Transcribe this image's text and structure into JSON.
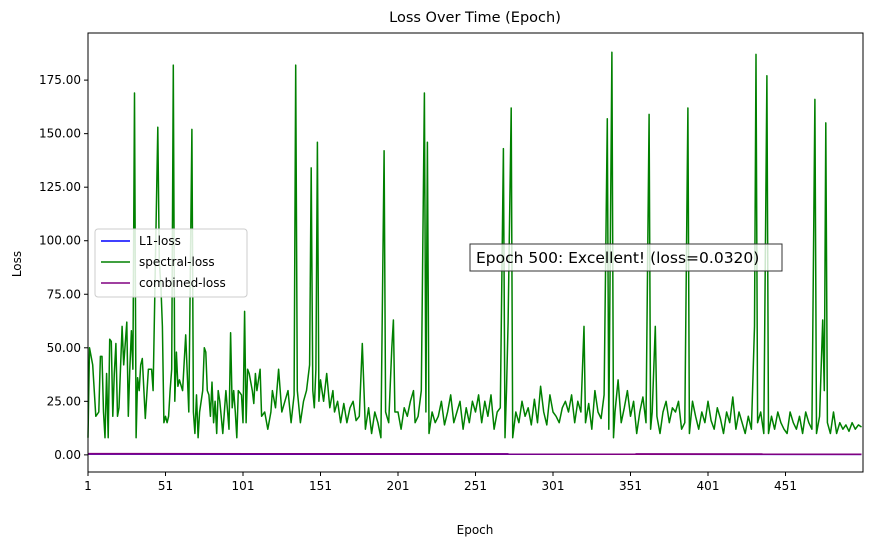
{
  "chart_data": {
    "type": "line",
    "title": "Loss Over Time (Epoch)",
    "xlabel": "Epoch",
    "ylabel": "Loss",
    "xlim": [
      1,
      501
    ],
    "ylim": [
      -8,
      197
    ],
    "xticks": [
      1,
      51,
      101,
      151,
      201,
      251,
      301,
      351,
      401,
      451
    ],
    "yticks": [
      0,
      25,
      50,
      75,
      100,
      125,
      150,
      175
    ],
    "ytick_labels": [
      "0.00",
      "25.00",
      "50.00",
      "75.00",
      "100.00",
      "125.00",
      "150.00",
      "175.00"
    ],
    "legend_position": "center-left",
    "annotation": "Epoch 500: Excellent! (loss=0.0320)",
    "series": [
      {
        "name": "L1-loss",
        "color": "#0000ff",
        "points": [
          [
            1,
            0.4
          ],
          [
            500,
            0.3
          ]
        ]
      },
      {
        "name": "spectral-loss",
        "color": "#008000",
        "points": [
          [
            1,
            8
          ],
          [
            2,
            50
          ],
          [
            4,
            42
          ],
          [
            6,
            18
          ],
          [
            8,
            20
          ],
          [
            9,
            46
          ],
          [
            10,
            46
          ],
          [
            11,
            20
          ],
          [
            12,
            8
          ],
          [
            13,
            38
          ],
          [
            14,
            8
          ],
          [
            15,
            54
          ],
          [
            16,
            53
          ],
          [
            17,
            18
          ],
          [
            18,
            38
          ],
          [
            19,
            52
          ],
          [
            20,
            18
          ],
          [
            21,
            22
          ],
          [
            23,
            60
          ],
          [
            24,
            42
          ],
          [
            26,
            62
          ],
          [
            27,
            18
          ],
          [
            28,
            40
          ],
          [
            29,
            58
          ],
          [
            30,
            40
          ],
          [
            31,
            169
          ],
          [
            32,
            8
          ],
          [
            33,
            36
          ],
          [
            34,
            30
          ],
          [
            35,
            42
          ],
          [
            36,
            45
          ],
          [
            38,
            17
          ],
          [
            40,
            40
          ],
          [
            42,
            40
          ],
          [
            43,
            30
          ],
          [
            46,
            153
          ],
          [
            47,
            90
          ],
          [
            48,
            80
          ],
          [
            49,
            60
          ],
          [
            50,
            15
          ],
          [
            51,
            18
          ],
          [
            52,
            15
          ],
          [
            53,
            18
          ],
          [
            54,
            30
          ],
          [
            55,
            40
          ],
          [
            56,
            182
          ],
          [
            57,
            25
          ],
          [
            58,
            48
          ],
          [
            59,
            32
          ],
          [
            60,
            35
          ],
          [
            62,
            30
          ],
          [
            64,
            56
          ],
          [
            66,
            20
          ],
          [
            68,
            152
          ],
          [
            69,
            20
          ],
          [
            70,
            10
          ],
          [
            71,
            28
          ],
          [
            72,
            8
          ],
          [
            73,
            20
          ],
          [
            75,
            30
          ],
          [
            76,
            50
          ],
          [
            77,
            48
          ],
          [
            78,
            30
          ],
          [
            79,
            28
          ],
          [
            80,
            18
          ],
          [
            81,
            34
          ],
          [
            82,
            15
          ],
          [
            83,
            25
          ],
          [
            84,
            10
          ],
          [
            85,
            30
          ],
          [
            86,
            25
          ],
          [
            88,
            10
          ],
          [
            90,
            30
          ],
          [
            92,
            12
          ],
          [
            93,
            57
          ],
          [
            94,
            22
          ],
          [
            95,
            30
          ],
          [
            96,
            20
          ],
          [
            97,
            8
          ],
          [
            98,
            30
          ],
          [
            100,
            28
          ],
          [
            101,
            15
          ],
          [
            102,
            67
          ],
          [
            103,
            15
          ],
          [
            104,
            40
          ],
          [
            105,
            38
          ],
          [
            107,
            30
          ],
          [
            108,
            24
          ],
          [
            109,
            38
          ],
          [
            110,
            30
          ],
          [
            112,
            40
          ],
          [
            113,
            18
          ],
          [
            115,
            20
          ],
          [
            117,
            12
          ],
          [
            119,
            20
          ],
          [
            120,
            30
          ],
          [
            122,
            22
          ],
          [
            124,
            40
          ],
          [
            126,
            20
          ],
          [
            128,
            25
          ],
          [
            130,
            30
          ],
          [
            132,
            15
          ],
          [
            134,
            28
          ],
          [
            135,
            182
          ],
          [
            136,
            30
          ],
          [
            138,
            15
          ],
          [
            140,
            25
          ],
          [
            142,
            30
          ],
          [
            144,
            42
          ],
          [
            145,
            134
          ],
          [
            146,
            30
          ],
          [
            147,
            22
          ],
          [
            148,
            40
          ],
          [
            149,
            146
          ],
          [
            150,
            25
          ],
          [
            151,
            35
          ],
          [
            152,
            30
          ],
          [
            153,
            25
          ],
          [
            155,
            38
          ],
          [
            157,
            22
          ],
          [
            159,
            30
          ],
          [
            160,
            20
          ],
          [
            162,
            25
          ],
          [
            164,
            15
          ],
          [
            166,
            24
          ],
          [
            168,
            15
          ],
          [
            170,
            22
          ],
          [
            172,
            25
          ],
          [
            174,
            16
          ],
          [
            176,
            18
          ],
          [
            178,
            52
          ],
          [
            180,
            12
          ],
          [
            182,
            22
          ],
          [
            184,
            10
          ],
          [
            186,
            20
          ],
          [
            188,
            15
          ],
          [
            190,
            8
          ],
          [
            192,
            142
          ],
          [
            193,
            20
          ],
          [
            195,
            15
          ],
          [
            197,
            50
          ],
          [
            198,
            63
          ],
          [
            199,
            20
          ],
          [
            201,
            20
          ],
          [
            203,
            12
          ],
          [
            205,
            22
          ],
          [
            207,
            18
          ],
          [
            209,
            25
          ],
          [
            211,
            30
          ],
          [
            212,
            15
          ],
          [
            214,
            18
          ],
          [
            216,
            30
          ],
          [
            218,
            169
          ],
          [
            219,
            20
          ],
          [
            220,
            146
          ],
          [
            221,
            10
          ],
          [
            223,
            20
          ],
          [
            225,
            15
          ],
          [
            227,
            18
          ],
          [
            229,
            25
          ],
          [
            231,
            14
          ],
          [
            233,
            20
          ],
          [
            235,
            28
          ],
          [
            237,
            15
          ],
          [
            239,
            20
          ],
          [
            241,
            25
          ],
          [
            243,
            12
          ],
          [
            245,
            22
          ],
          [
            247,
            15
          ],
          [
            249,
            25
          ],
          [
            251,
            20
          ],
          [
            253,
            28
          ],
          [
            255,
            15
          ],
          [
            257,
            25
          ],
          [
            259,
            18
          ],
          [
            261,
            28
          ],
          [
            263,
            12
          ],
          [
            265,
            20
          ],
          [
            267,
            22
          ],
          [
            269,
            143
          ],
          [
            270,
            8
          ],
          [
            271,
            30
          ],
          [
            272,
            62
          ],
          [
            274,
            162
          ],
          [
            275,
            8
          ],
          [
            277,
            20
          ],
          [
            279,
            15
          ],
          [
            281,
            25
          ],
          [
            283,
            18
          ],
          [
            285,
            22
          ],
          [
            287,
            14
          ],
          [
            289,
            26
          ],
          [
            291,
            15
          ],
          [
            293,
            32
          ],
          [
            295,
            20
          ],
          [
            297,
            14
          ],
          [
            299,
            28
          ],
          [
            301,
            20
          ],
          [
            303,
            18
          ],
          [
            305,
            15
          ],
          [
            307,
            22
          ],
          [
            309,
            25
          ],
          [
            311,
            20
          ],
          [
            313,
            28
          ],
          [
            315,
            15
          ],
          [
            317,
            25
          ],
          [
            319,
            20
          ],
          [
            321,
            60
          ],
          [
            322,
            15
          ],
          [
            324,
            24
          ],
          [
            326,
            12
          ],
          [
            328,
            30
          ],
          [
            330,
            20
          ],
          [
            332,
            17
          ],
          [
            334,
            28
          ],
          [
            336,
            157
          ],
          [
            337,
            12
          ],
          [
            339,
            188
          ],
          [
            340,
            8
          ],
          [
            341,
            20
          ],
          [
            343,
            35
          ],
          [
            345,
            15
          ],
          [
            347,
            22
          ],
          [
            349,
            30
          ],
          [
            351,
            18
          ],
          [
            353,
            25
          ],
          [
            355,
            10
          ],
          [
            357,
            20
          ],
          [
            359,
            27
          ],
          [
            361,
            15
          ],
          [
            363,
            159
          ],
          [
            364,
            12
          ],
          [
            365,
            20
          ],
          [
            367,
            60
          ],
          [
            368,
            18
          ],
          [
            370,
            10
          ],
          [
            372,
            20
          ],
          [
            374,
            25
          ],
          [
            376,
            15
          ],
          [
            378,
            22
          ],
          [
            380,
            20
          ],
          [
            382,
            25
          ],
          [
            384,
            12
          ],
          [
            386,
            15
          ],
          [
            388,
            162
          ],
          [
            389,
            10
          ],
          [
            391,
            25
          ],
          [
            393,
            18
          ],
          [
            395,
            12
          ],
          [
            397,
            20
          ],
          [
            399,
            15
          ],
          [
            401,
            25
          ],
          [
            403,
            16
          ],
          [
            405,
            12
          ],
          [
            407,
            22
          ],
          [
            409,
            17
          ],
          [
            411,
            10
          ],
          [
            413,
            20
          ],
          [
            415,
            15
          ],
          [
            417,
            27
          ],
          [
            419,
            12
          ],
          [
            421,
            20
          ],
          [
            423,
            15
          ],
          [
            425,
            10
          ],
          [
            427,
            18
          ],
          [
            429,
            12
          ],
          [
            431,
            60
          ],
          [
            432,
            187
          ],
          [
            433,
            15
          ],
          [
            435,
            20
          ],
          [
            437,
            10
          ],
          [
            439,
            177
          ],
          [
            440,
            10
          ],
          [
            442,
            18
          ],
          [
            444,
            12
          ],
          [
            446,
            20
          ],
          [
            448,
            15
          ],
          [
            450,
            12
          ],
          [
            452,
            10
          ],
          [
            454,
            20
          ],
          [
            456,
            15
          ],
          [
            458,
            12
          ],
          [
            460,
            18
          ],
          [
            462,
            10
          ],
          [
            464,
            20
          ],
          [
            466,
            15
          ],
          [
            468,
            12
          ],
          [
            470,
            166
          ],
          [
            471,
            10
          ],
          [
            473,
            18
          ],
          [
            475,
            63
          ],
          [
            476,
            30
          ],
          [
            477,
            155
          ],
          [
            478,
            15
          ],
          [
            480,
            10
          ],
          [
            482,
            20
          ],
          [
            484,
            10
          ],
          [
            486,
            15
          ],
          [
            488,
            12
          ],
          [
            490,
            14
          ],
          [
            492,
            11
          ],
          [
            494,
            15
          ],
          [
            496,
            12
          ],
          [
            498,
            14
          ],
          [
            500,
            13
          ]
        ]
      },
      {
        "name": "combined-loss",
        "color": "#800080",
        "points": [
          [
            1,
            0.5
          ],
          [
            500,
            0.3
          ]
        ]
      }
    ]
  }
}
